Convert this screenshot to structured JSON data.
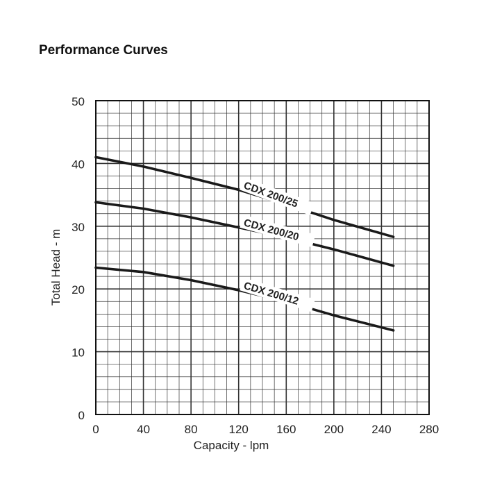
{
  "page": {
    "title": "Performance Curves"
  },
  "chart_data": {
    "type": "line",
    "title": "",
    "xlabel": "Capacity - lpm",
    "ylabel": "Total Head - m",
    "xlim": [
      0,
      280
    ],
    "ylim": [
      0,
      50
    ],
    "x_ticks": [
      0,
      40,
      80,
      120,
      160,
      200,
      240,
      280
    ],
    "y_ticks": [
      0,
      10,
      20,
      30,
      40,
      50
    ],
    "grid": true,
    "series": [
      {
        "name": "CDX 200/25",
        "x": [
          0,
          40,
          80,
          120,
          160,
          200,
          250
        ],
        "y": [
          41,
          39.5,
          37.7,
          35.8,
          33.5,
          31,
          28.3
        ]
      },
      {
        "name": "CDX 200/20",
        "x": [
          0,
          40,
          80,
          120,
          160,
          200,
          250
        ],
        "y": [
          33.8,
          32.8,
          31.4,
          29.8,
          28.2,
          26.3,
          23.7
        ]
      },
      {
        "name": "CDX 200/12",
        "x": [
          0,
          40,
          80,
          120,
          160,
          200,
          250
        ],
        "y": [
          23.4,
          22.7,
          21.4,
          19.8,
          18,
          15.8,
          13.4
        ]
      }
    ],
    "colors": {
      "line": "#1a1a1a",
      "grid": "#333333"
    }
  }
}
